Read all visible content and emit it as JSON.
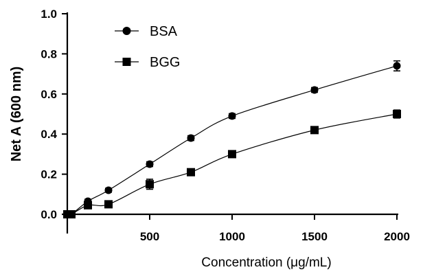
{
  "chart_data": {
    "type": "scatter",
    "title": "",
    "xlabel": "Concentration (μg/mL)",
    "ylabel": "Net A (600 nm)",
    "xlim": [
      0,
      2000
    ],
    "ylim": [
      0.0,
      1.0
    ],
    "x_ticks": [
      500,
      1000,
      1500,
      2000
    ],
    "x_tick_labels": [
      "500",
      "1000",
      "1500",
      "2000"
    ],
    "y_ticks": [
      0.0,
      0.2,
      0.4,
      0.6,
      0.8,
      1.0
    ],
    "y_tick_labels": [
      "0.0",
      "0.2",
      "0.4",
      "0.6",
      "0.8",
      "1.0"
    ],
    "grid": false,
    "legend": "top-left",
    "series": [
      {
        "name": "BSA",
        "marker": "circle",
        "color": "#000000",
        "x": [
          0,
          25,
          125,
          250,
          500,
          750,
          1000,
          1500,
          2000
        ],
        "y": [
          0.0,
          0.0,
          0.065,
          0.12,
          0.25,
          0.38,
          0.49,
          0.62,
          0.74
        ],
        "error": [
          0.005,
          0.005,
          0.01,
          0.01,
          0.012,
          0.012,
          0.012,
          0.012,
          0.025
        ]
      },
      {
        "name": "BGG",
        "marker": "square",
        "color": "#000000",
        "x": [
          0,
          25,
          125,
          250,
          500,
          750,
          1000,
          1500,
          2000
        ],
        "y": [
          0.0,
          0.0,
          0.045,
          0.05,
          0.15,
          0.21,
          0.3,
          0.42,
          0.5
        ],
        "error": [
          0.005,
          0.005,
          0.01,
          0.01,
          0.025,
          0.01,
          0.012,
          0.015,
          0.02
        ]
      }
    ]
  }
}
